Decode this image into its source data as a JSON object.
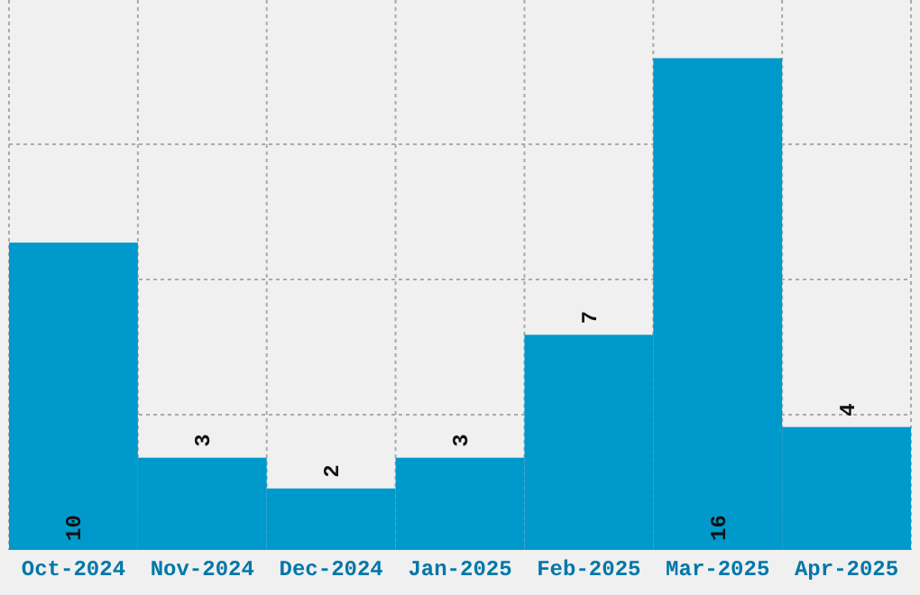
{
  "chart_data": {
    "type": "bar",
    "categories": [
      "Oct-2024",
      "Nov-2024",
      "Dec-2024",
      "Jan-2025",
      "Feb-2025",
      "Mar-2025",
      "Apr-2025"
    ],
    "values": [
      10,
      3,
      2,
      3,
      7,
      16,
      4
    ],
    "color": "#0099cc",
    "data_labels": true,
    "grid": true,
    "tick_labels": "x"
  }
}
